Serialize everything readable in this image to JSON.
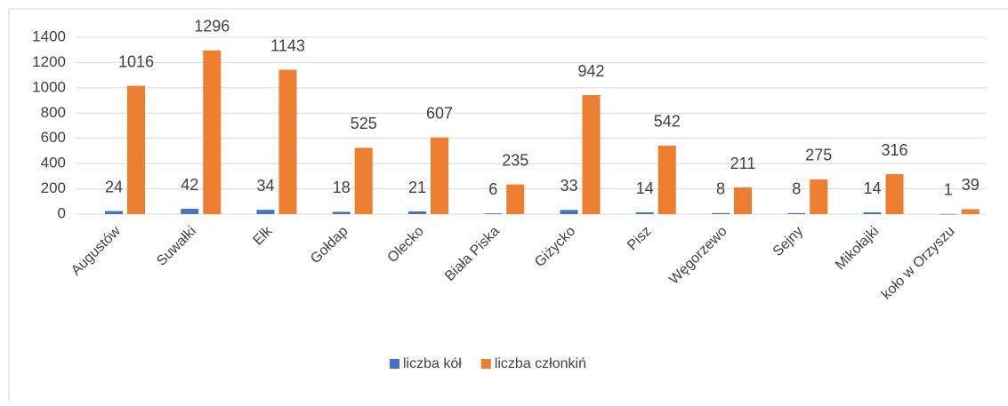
{
  "chart_data": {
    "type": "bar",
    "categories": [
      "Augustów",
      "Suwałki",
      "Ełk",
      "Gołdap",
      "Olecko",
      "Biała Piska",
      "Giżycko",
      "Pisz",
      "Węgorzewo",
      "Sejny",
      "Mikołajki",
      "koło w Orzyszu"
    ],
    "series": [
      {
        "name": "liczba kół",
        "color": "#4472c4",
        "values": [
          24,
          42,
          34,
          18,
          21,
          6,
          33,
          14,
          8,
          8,
          14,
          1
        ]
      },
      {
        "name": "liczba członkiń",
        "color": "#ed7d31",
        "values": [
          1016,
          1296,
          1143,
          525,
          607,
          235,
          942,
          542,
          211,
          275,
          316,
          39
        ]
      }
    ],
    "ylim": [
      0,
      1400
    ],
    "yticks": [
      0,
      200,
      400,
      600,
      800,
      1000,
      1200,
      1400
    ],
    "grid": true,
    "legend": "bottom"
  }
}
